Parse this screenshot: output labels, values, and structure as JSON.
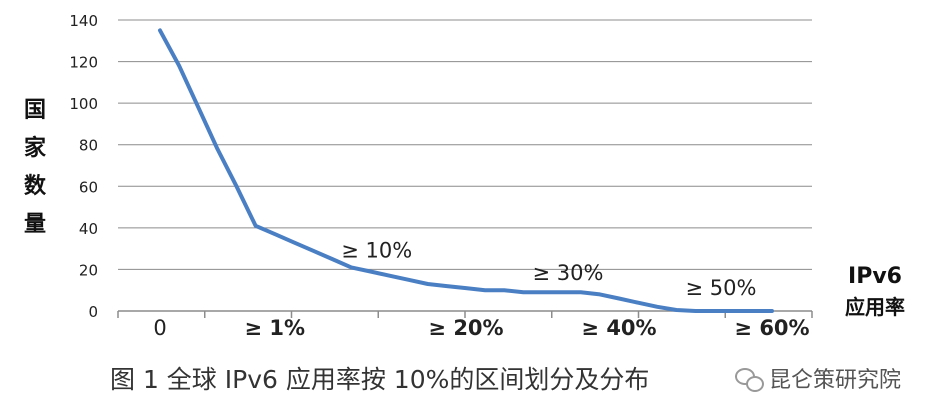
{
  "chart_data": {
    "type": "line",
    "title": "",
    "ylabel": "国家数量",
    "xlabel_lines": [
      "IPv6",
      "应用率"
    ],
    "ylim": [
      0,
      140
    ],
    "yticks": [
      0,
      20,
      40,
      60,
      80,
      100,
      120,
      140
    ],
    "grid": true,
    "series_color": "#4a7fc4",
    "x_tick_labels": [
      {
        "text": "0",
        "at": 0
      },
      {
        "text": "≥ 1%",
        "at": 6
      },
      {
        "text": "≥ 20%",
        "at": 16
      },
      {
        "text": "≥ 40%",
        "at": 24
      },
      {
        "text": "≥ 60%",
        "at": 32
      }
    ],
    "annotations": [
      {
        "text": "≥ 10%",
        "x": 10,
        "y": 21
      },
      {
        "text": "≥ 30%",
        "x": 20,
        "y": 10
      },
      {
        "text": "≥ 50%",
        "x": 28,
        "y": 3
      }
    ],
    "x": [
      0,
      1,
      2,
      3,
      4,
      5,
      6,
      7,
      8,
      9,
      10,
      11,
      12,
      13,
      14,
      15,
      16,
      17,
      18,
      19,
      20,
      21,
      22,
      23,
      24,
      25,
      26,
      27,
      28,
      29,
      30,
      31,
      32
    ],
    "values": [
      135,
      118,
      98,
      78,
      60,
      41,
      37,
      33,
      29,
      25,
      21,
      19,
      17,
      15,
      13,
      12,
      11,
      10,
      10,
      9,
      9,
      9,
      9,
      8,
      6,
      4,
      2,
      0.5,
      0,
      0,
      0,
      0,
      0
    ]
  },
  "caption": "图 1 全球 IPv6 应用率按 10%的区间划分及分布",
  "watermark": "昆仑策研究院"
}
